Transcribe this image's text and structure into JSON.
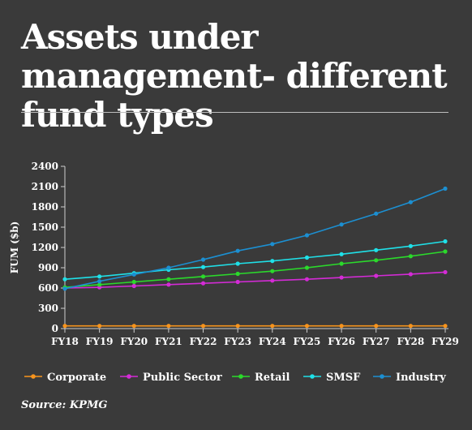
{
  "title": "Assets under management- different fund types",
  "source": "Source: KPMG",
  "chart_data": {
    "type": "line",
    "title": "Assets under management- different fund types",
    "xlabel": "",
    "ylabel": "FUM ($b)",
    "ylim": [
      0,
      2400
    ],
    "yticks": [
      "0",
      "300",
      "600",
      "900",
      "1200",
      "1500",
      "1800",
      "2100",
      "2400"
    ],
    "categories": [
      "FY18",
      "FY19",
      "FY20",
      "FY21",
      "FY22",
      "FY23",
      "FY24",
      "FY25",
      "FY26",
      "FY27",
      "FY28",
      "FY29"
    ],
    "grid": false,
    "legend": "bottom",
    "series": [
      {
        "name": "Corporate",
        "color": "#f7941d",
        "values": [
          40,
          40,
          40,
          40,
          40,
          40,
          40,
          40,
          40,
          40,
          40,
          40
        ]
      },
      {
        "name": "Public Sector",
        "color": "#d42bd6",
        "values": [
          600,
          610,
          630,
          650,
          670,
          690,
          710,
          730,
          755,
          780,
          805,
          835
        ]
      },
      {
        "name": "Retail",
        "color": "#2bd92b",
        "values": [
          610,
          650,
          690,
          730,
          770,
          810,
          850,
          900,
          960,
          1010,
          1070,
          1140
        ]
      },
      {
        "name": "SMSF",
        "color": "#1fe0e8",
        "values": [
          730,
          770,
          820,
          870,
          910,
          960,
          1000,
          1050,
          1100,
          1160,
          1220,
          1290
        ]
      },
      {
        "name": "Industry",
        "color": "#1c8fd1",
        "values": [
          590,
          700,
          800,
          900,
          1020,
          1150,
          1250,
          1380,
          1540,
          1700,
          1870,
          2070
        ]
      }
    ]
  }
}
